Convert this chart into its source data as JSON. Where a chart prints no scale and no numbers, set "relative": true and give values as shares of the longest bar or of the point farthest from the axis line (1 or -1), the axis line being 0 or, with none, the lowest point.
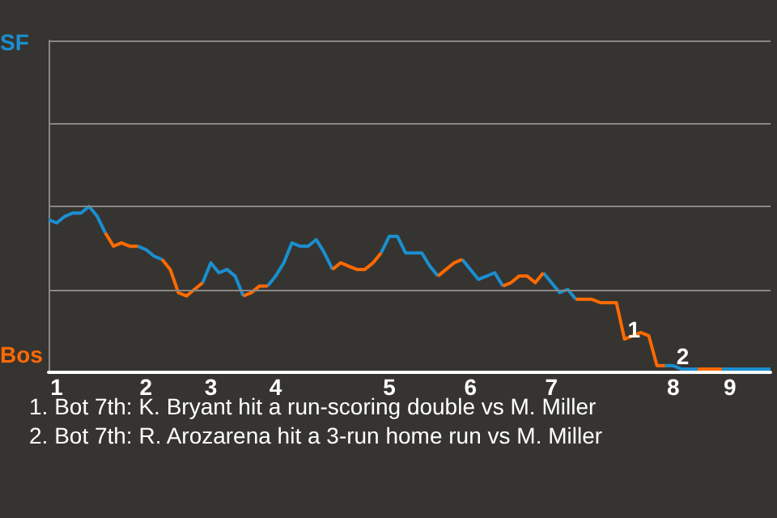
{
  "chart_data": {
    "type": "line",
    "relative": true,
    "categories": [
      null,
      "1",
      null,
      null,
      null,
      null,
      null,
      null,
      null,
      null,
      null,
      null,
      "2",
      null,
      null,
      null,
      null,
      null,
      null,
      null,
      "3",
      null,
      null,
      null,
      null,
      null,
      null,
      null,
      "4",
      null,
      null,
      null,
      null,
      null,
      null,
      null,
      null,
      null,
      null,
      null,
      null,
      null,
      "5",
      null,
      null,
      null,
      null,
      null,
      null,
      null,
      null,
      null,
      "6",
      null,
      null,
      null,
      null,
      null,
      null,
      null,
      null,
      null,
      "7",
      null,
      null,
      null,
      null,
      null,
      null,
      null,
      null,
      null,
      null,
      null,
      null,
      null,
      null,
      "8",
      null,
      null,
      null,
      null,
      null,
      null,
      "9",
      null,
      null,
      null,
      null,
      null
    ],
    "series": [
      {
        "name": "SF",
        "color": "#1a8fd0",
        "values": [
          0.92,
          0.9,
          0.94,
          0.96,
          0.96,
          1,
          0.94,
          0.84,
          null,
          null,
          null,
          0.76,
          0.74,
          0.7,
          0.68,
          null,
          null,
          null,
          null,
          0.54,
          0.66,
          0.6,
          0.62,
          0.58,
          0.46,
          null,
          null,
          0.52,
          0.58,
          0.66,
          0.78,
          0.76,
          0.76,
          0.8,
          0.72,
          0.62,
          null,
          null,
          null,
          null,
          null,
          0.72,
          0.82,
          0.82,
          0.72,
          0.72,
          0.72,
          0.64,
          0.58,
          null,
          null,
          0.68,
          0.62,
          0.56,
          0.58,
          0.6,
          0.52,
          null,
          null,
          null,
          null,
          0.6,
          0.54,
          0.48,
          0.5,
          0.44,
          null,
          null,
          null,
          null,
          null,
          null,
          null,
          null,
          null,
          null,
          0.04,
          0.04,
          0.02,
          0.02,
          0.02,
          null,
          null,
          0.02,
          0.02,
          0.02,
          0.02,
          0.02,
          0.02,
          0.02
        ]
      },
      {
        "name": "Bos",
        "color": "#ff6a00",
        "values": [
          null,
          null,
          null,
          null,
          null,
          null,
          null,
          0.84,
          0.76,
          0.78,
          0.76,
          0.76,
          null,
          null,
          0.68,
          0.62,
          0.48,
          0.46,
          0.5,
          0.54,
          null,
          null,
          null,
          null,
          0.46,
          0.48,
          0.52,
          0.52,
          null,
          null,
          null,
          null,
          null,
          null,
          null,
          0.62,
          0.66,
          0.64,
          0.62,
          0.62,
          0.66,
          0.72,
          null,
          null,
          null,
          null,
          null,
          null,
          0.58,
          0.62,
          0.66,
          0.68,
          null,
          null,
          null,
          null,
          0.52,
          0.54,
          0.58,
          0.58,
          0.54,
          0.6,
          null,
          null,
          null,
          0.44,
          0.44,
          0.44,
          0.42,
          0.42,
          0.42,
          0.2,
          0.22,
          0.24,
          0.22,
          0.04,
          0.04,
          null,
          null,
          null,
          0.02,
          0.02,
          0.02,
          0.02,
          null,
          null,
          null,
          null,
          null,
          null
        ]
      }
    ],
    "ref_lines": [
      {
        "axis": "y",
        "value": 0.5,
        "color": "#8a8885"
      },
      {
        "axis": "y",
        "value": 1,
        "color": "#8a8885"
      },
      {
        "axis": "y",
        "value": 1.5,
        "color": "#8a8885"
      },
      {
        "axis": "y",
        "value": 2,
        "color": "#8a8885"
      }
    ],
    "annotations": [
      {
        "text": "1",
        "y": 0.2
      },
      {
        "text": "2",
        "y": 0.04
      },
      "1. Bot 7th: K. Bryant hit a run-scoring double vs M. Miller",
      "2. Bot 7th: R. Arozarena hit a 3-run home run vs M. Miller"
    ]
  }
}
